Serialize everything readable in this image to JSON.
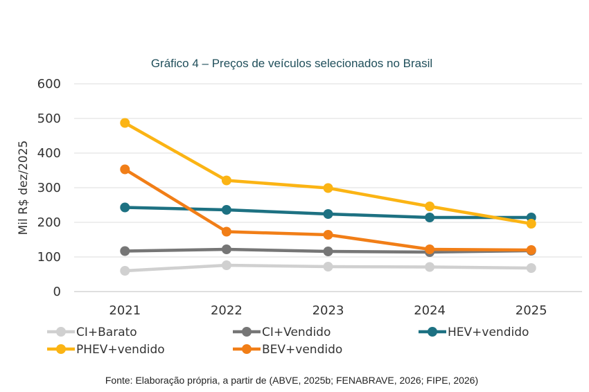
{
  "chart_data": {
    "type": "line",
    "title": "Gráfico 4  – Preços de veículos selecionados no Brasil",
    "ylabel": "Mil R$ dez/2025",
    "xlabel": "",
    "categories": [
      "2021",
      "2022",
      "2023",
      "2024",
      "2025"
    ],
    "ylim": [
      0,
      600
    ],
    "yticks": [
      0,
      100,
      200,
      300,
      400,
      500,
      600
    ],
    "grid": true,
    "legend_position": "bottom",
    "series": [
      {
        "name": "CI+Barato",
        "color": "#d0d0d0",
        "values": [
          60,
          76,
          72,
          71,
          68
        ]
      },
      {
        "name": "CI+Vendido",
        "color": "#767676",
        "values": [
          117,
          122,
          116,
          114,
          118
        ]
      },
      {
        "name": "HEV+vendido",
        "color": "#1d7182",
        "values": [
          243,
          236,
          224,
          214,
          214
        ]
      },
      {
        "name": "PHEV+vendido",
        "color": "#fbb414",
        "values": [
          487,
          321,
          299,
          246,
          196
        ]
      },
      {
        "name": "BEV+vendido",
        "color": "#f17e17",
        "values": [
          353,
          173,
          164,
          122,
          120
        ]
      }
    ],
    "source": "Fonte: Elaboração própria, a partir de (ABVE, 2025b; FENABRAVE, 2026; FIPE, 2026)"
  }
}
